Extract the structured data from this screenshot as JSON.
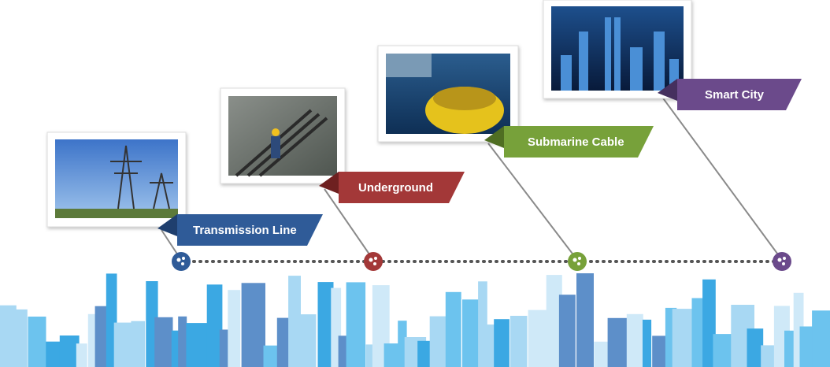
{
  "milestones": [
    {
      "label": "Transmission Line"
    },
    {
      "label": "Underground"
    },
    {
      "label": "Submarine Cable"
    },
    {
      "label": "Smart City"
    }
  ]
}
